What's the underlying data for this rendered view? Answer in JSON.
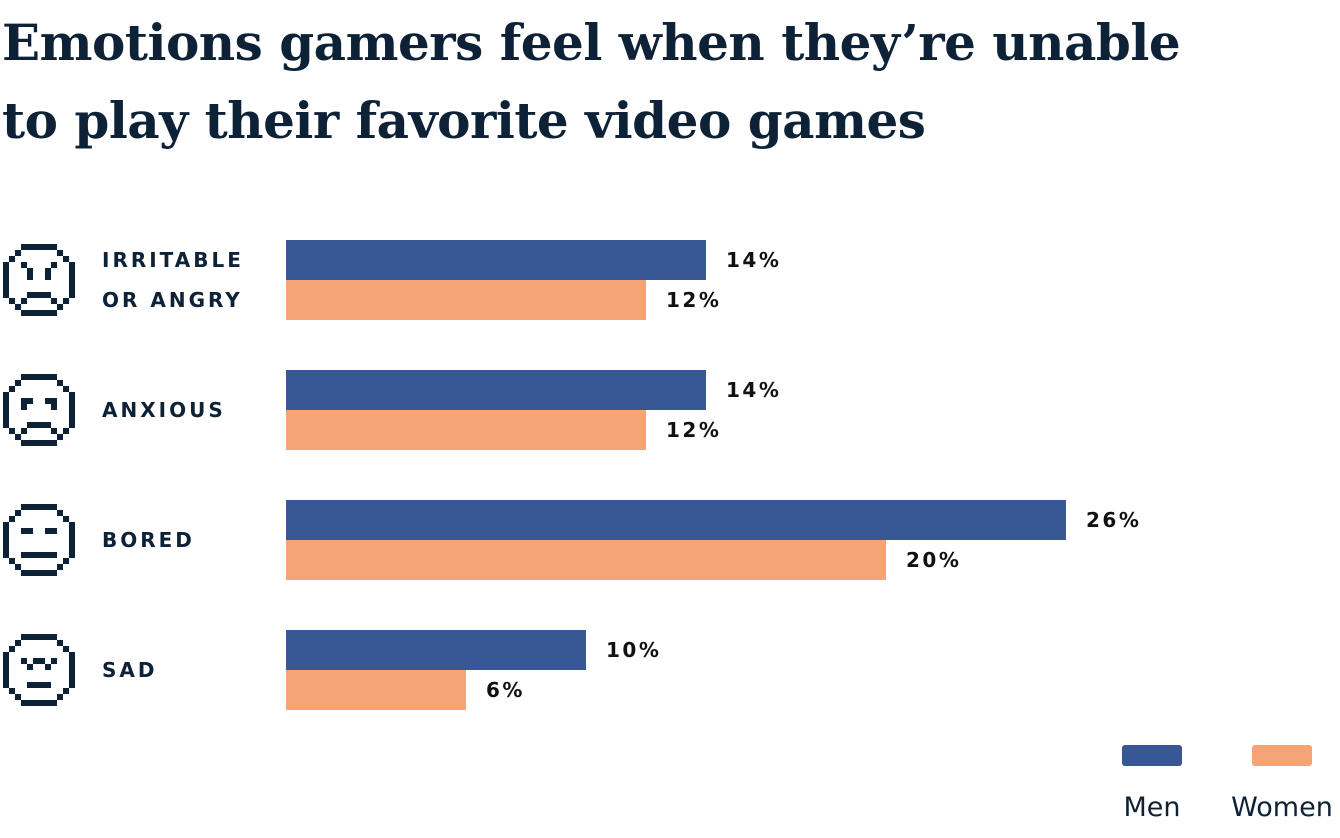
{
  "chart_data": {
    "type": "hbar",
    "title": "Emotions gamers feel when they’re unable\nto play their favorite video games",
    "categories": [
      "IRRITABLE\nOR ANGRY",
      "ANXIOUS",
      "BORED",
      "SAD"
    ],
    "series": [
      {
        "name": "Men",
        "color": "#385895",
        "values": [
          14,
          14,
          26,
          10
        ],
        "value_labels": [
          "14%",
          "14%",
          "26%",
          "10%"
        ]
      },
      {
        "name": "Women",
        "color": "#f4a476",
        "values": [
          12,
          12,
          20,
          6
        ],
        "value_labels": [
          "12%",
          "12%",
          "20%",
          "6%"
        ]
      }
    ]
  }
}
